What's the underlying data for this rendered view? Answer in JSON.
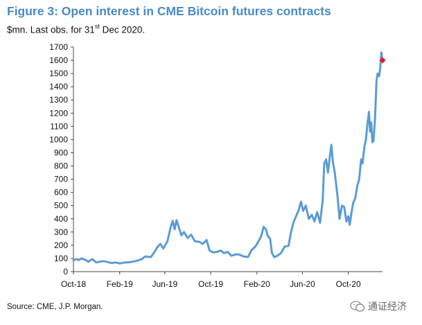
{
  "header": {
    "title": "Figure 3: Open interest in CME Bitcoin futures contracts",
    "subtitle_pre": "$mn. Last obs. for 31",
    "subtitle_sup": "st",
    "subtitle_post": " Dec 2020."
  },
  "source": "Source: CME, J.P. Morgan.",
  "watermark": {
    "text": "通证经济"
  },
  "colors": {
    "title": "#4a8bc4",
    "line": "#5b9bd5",
    "marker": "#e8181f"
  },
  "chart_data": {
    "type": "line",
    "title": "Figure 3: Open interest in CME Bitcoin futures contracts",
    "ylabel": "",
    "xlabel": "",
    "unit": "$mn",
    "ylim": [
      0,
      1700
    ],
    "yticks": [
      0,
      100,
      200,
      300,
      400,
      500,
      600,
      700,
      800,
      900,
      1000,
      1100,
      1200,
      1300,
      1400,
      1500,
      1600,
      1700
    ],
    "xlim": [
      "2018-10-01",
      "2020-12-31"
    ],
    "xticks": [
      {
        "label": "Oct-18",
        "date": "2018-10-01"
      },
      {
        "label": "Feb-19",
        "date": "2019-02-01"
      },
      {
        "label": "Jun-19",
        "date": "2019-06-01"
      },
      {
        "label": "Oct-19",
        "date": "2019-10-01"
      },
      {
        "label": "Feb-20",
        "date": "2020-02-01"
      },
      {
        "label": "Jun-20",
        "date": "2020-06-01"
      },
      {
        "label": "Oct-20",
        "date": "2020-10-01"
      }
    ],
    "grid": false,
    "legend": "none",
    "series": [
      {
        "name": "",
        "points": [
          [
            "2018-10-01",
            85
          ],
          [
            "2018-10-08",
            95
          ],
          [
            "2018-10-15",
            88
          ],
          [
            "2018-10-22",
            100
          ],
          [
            "2018-11-01",
            90
          ],
          [
            "2018-11-10",
            75
          ],
          [
            "2018-11-20",
            95
          ],
          [
            "2018-12-01",
            70
          ],
          [
            "2018-12-10",
            75
          ],
          [
            "2018-12-20",
            80
          ],
          [
            "2019-01-01",
            72
          ],
          [
            "2019-01-10",
            65
          ],
          [
            "2019-01-20",
            70
          ],
          [
            "2019-02-01",
            62
          ],
          [
            "2019-02-15",
            70
          ],
          [
            "2019-03-01",
            72
          ],
          [
            "2019-03-15",
            80
          ],
          [
            "2019-04-01",
            95
          ],
          [
            "2019-04-10",
            115
          ],
          [
            "2019-04-25",
            110
          ],
          [
            "2019-05-05",
            150
          ],
          [
            "2019-05-12",
            185
          ],
          [
            "2019-05-20",
            210
          ],
          [
            "2019-05-28",
            175
          ],
          [
            "2019-06-08",
            230
          ],
          [
            "2019-06-16",
            330
          ],
          [
            "2019-06-22",
            385
          ],
          [
            "2019-06-27",
            320
          ],
          [
            "2019-07-02",
            390
          ],
          [
            "2019-07-08",
            340
          ],
          [
            "2019-07-15",
            275
          ],
          [
            "2019-07-22",
            300
          ],
          [
            "2019-08-01",
            255
          ],
          [
            "2019-08-10",
            280
          ],
          [
            "2019-08-20",
            230
          ],
          [
            "2019-09-01",
            225
          ],
          [
            "2019-09-10",
            210
          ],
          [
            "2019-09-20",
            240
          ],
          [
            "2019-09-28",
            160
          ],
          [
            "2019-10-08",
            145
          ],
          [
            "2019-10-18",
            150
          ],
          [
            "2019-10-28",
            160
          ],
          [
            "2019-11-05",
            140
          ],
          [
            "2019-11-15",
            150
          ],
          [
            "2019-11-25",
            120
          ],
          [
            "2019-12-05",
            130
          ],
          [
            "2019-12-15",
            130
          ],
          [
            "2019-12-28",
            115
          ],
          [
            "2020-01-08",
            110
          ],
          [
            "2020-01-18",
            165
          ],
          [
            "2020-01-28",
            190
          ],
          [
            "2020-02-05",
            230
          ],
          [
            "2020-02-12",
            265
          ],
          [
            "2020-02-19",
            340
          ],
          [
            "2020-02-25",
            320
          ],
          [
            "2020-03-01",
            270
          ],
          [
            "2020-03-07",
            250
          ],
          [
            "2020-03-12",
            140
          ],
          [
            "2020-03-18",
            110
          ],
          [
            "2020-03-26",
            120
          ],
          [
            "2020-04-05",
            140
          ],
          [
            "2020-04-15",
            190
          ],
          [
            "2020-04-25",
            195
          ],
          [
            "2020-05-01",
            290
          ],
          [
            "2020-05-08",
            370
          ],
          [
            "2020-05-15",
            420
          ],
          [
            "2020-05-22",
            465
          ],
          [
            "2020-05-28",
            530
          ],
          [
            "2020-06-03",
            460
          ],
          [
            "2020-06-10",
            500
          ],
          [
            "2020-06-18",
            400
          ],
          [
            "2020-06-26",
            430
          ],
          [
            "2020-07-03",
            380
          ],
          [
            "2020-07-10",
            450
          ],
          [
            "2020-07-18",
            370
          ],
          [
            "2020-07-25",
            540
          ],
          [
            "2020-07-29",
            820
          ],
          [
            "2020-08-03",
            850
          ],
          [
            "2020-08-08",
            750
          ],
          [
            "2020-08-13",
            870
          ],
          [
            "2020-08-17",
            960
          ],
          [
            "2020-08-21",
            830
          ],
          [
            "2020-08-26",
            750
          ],
          [
            "2020-09-02",
            580
          ],
          [
            "2020-09-08",
            400
          ],
          [
            "2020-09-14",
            500
          ],
          [
            "2020-09-20",
            490
          ],
          [
            "2020-09-26",
            380
          ],
          [
            "2020-10-01",
            420
          ],
          [
            "2020-10-05",
            355
          ],
          [
            "2020-10-09",
            440
          ],
          [
            "2020-10-14",
            520
          ],
          [
            "2020-10-20",
            560
          ],
          [
            "2020-10-25",
            650
          ],
          [
            "2020-10-30",
            700
          ],
          [
            "2020-11-04",
            850
          ],
          [
            "2020-11-08",
            820
          ],
          [
            "2020-11-13",
            950
          ],
          [
            "2020-11-17",
            1000
          ],
          [
            "2020-11-21",
            1120
          ],
          [
            "2020-11-25",
            1210
          ],
          [
            "2020-11-28",
            1060
          ],
          [
            "2020-12-01",
            1130
          ],
          [
            "2020-12-04",
            980
          ],
          [
            "2020-12-07",
            990
          ],
          [
            "2020-12-11",
            1150
          ],
          [
            "2020-12-15",
            1440
          ],
          [
            "2020-12-18",
            1500
          ],
          [
            "2020-12-22",
            1480
          ],
          [
            "2020-12-25",
            1540
          ],
          [
            "2020-12-28",
            1660
          ],
          [
            "2020-12-31",
            1600
          ]
        ]
      }
    ],
    "last_observation": {
      "date": "2020-12-31",
      "value": 1600
    }
  }
}
